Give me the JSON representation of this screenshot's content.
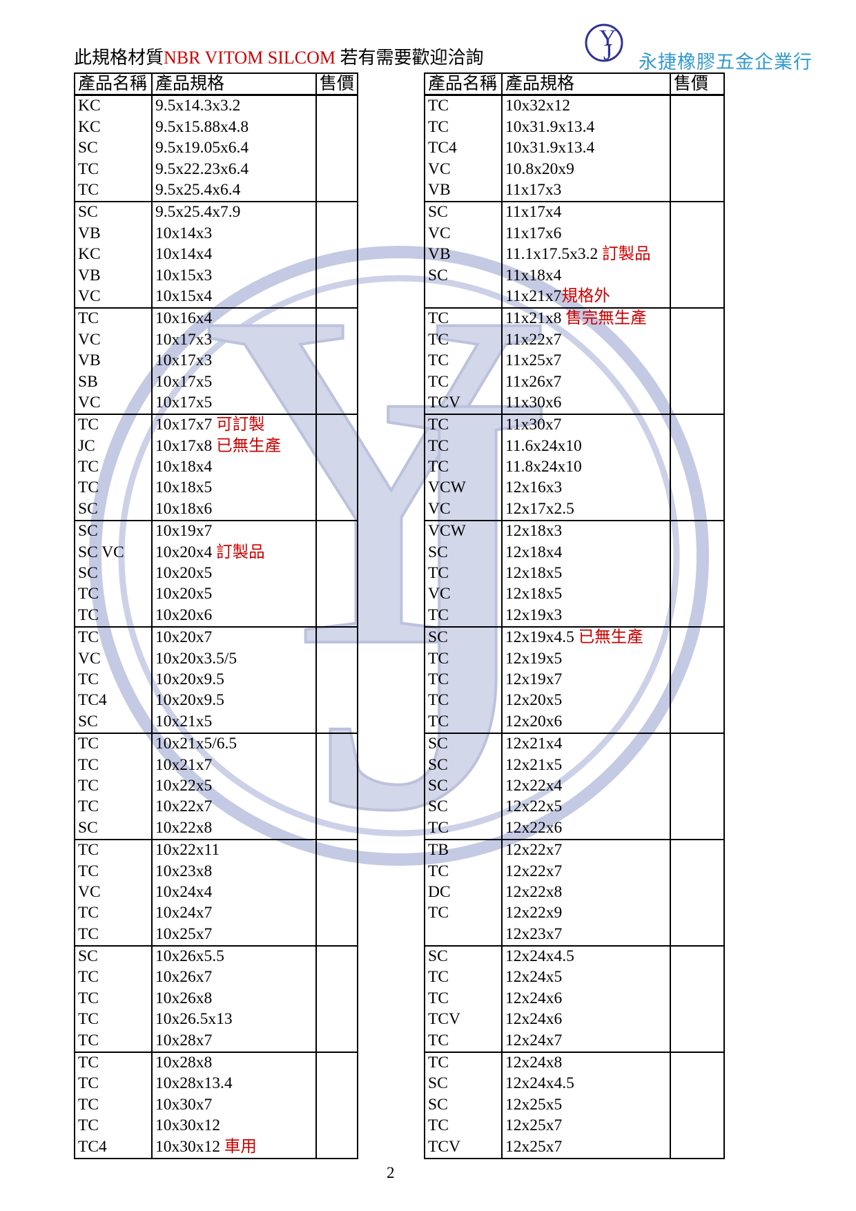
{
  "header": {
    "prefix": "此規格材質",
    "highlight": "NBR VITOM SILCOM",
    "suffix": " 若有需要歡迎洽詢"
  },
  "company": {
    "name": "永捷橡膠五金企業行",
    "color": "#3399cc"
  },
  "logo": {
    "letters": [
      "Y",
      "J"
    ],
    "color": "#2e3192"
  },
  "watermark": {
    "letters": [
      "Y",
      "J"
    ],
    "ring_color": "#c4cae3",
    "letter_fill": "#d3d7ea"
  },
  "colors": {
    "note_red": "#cc0000",
    "text": "#000000"
  },
  "columns": [
    "產品名稱",
    "產品規格",
    "售價"
  ],
  "tables": {
    "left": {
      "rows": [
        [
          "KC",
          "9.5x14.3x3.2",
          ""
        ],
        [
          "KC",
          "9.5x15.88x4.8",
          ""
        ],
        [
          "SC",
          "9.5x19.05x6.4",
          ""
        ],
        [
          "TC",
          "9.5x22.23x6.4",
          ""
        ],
        [
          "TC",
          "9.5x25.4x6.4",
          ""
        ],
        [
          "SC",
          "9.5x25.4x7.9",
          ""
        ],
        [
          "VB",
          "10x14x3",
          ""
        ],
        [
          "KC",
          "10x14x4",
          ""
        ],
        [
          "VB",
          "10x15x3",
          ""
        ],
        [
          "VC",
          "10x15x4",
          ""
        ],
        [
          "TC",
          "10x16x4",
          ""
        ],
        [
          "VC",
          "10x17x3",
          ""
        ],
        [
          "VB",
          "10x17x3",
          ""
        ],
        [
          "SB",
          "10x17x5",
          ""
        ],
        [
          "VC",
          "10x17x5",
          ""
        ],
        [
          "TC",
          "10x17x7",
          " 可訂製"
        ],
        [
          "JC",
          "10x17x8",
          " 已無生產"
        ],
        [
          "TC",
          "10x18x4",
          ""
        ],
        [
          "TC",
          "10x18x5",
          ""
        ],
        [
          "SC",
          "10x18x6",
          ""
        ],
        [
          "SC",
          "10x19x7",
          ""
        ],
        [
          "SC VC",
          "10x20x4",
          " 訂製品"
        ],
        [
          "SC",
          "10x20x5",
          ""
        ],
        [
          "TC",
          "10x20x5",
          ""
        ],
        [
          "TC",
          "10x20x6",
          ""
        ],
        [
          "TC",
          "10x20x7",
          ""
        ],
        [
          "VC",
          "10x20x3.5/5",
          ""
        ],
        [
          "TC",
          "10x20x9.5",
          ""
        ],
        [
          "TC4",
          "10x20x9.5",
          ""
        ],
        [
          "SC",
          "10x21x5",
          ""
        ],
        [
          "TC",
          "10x21x5/6.5",
          ""
        ],
        [
          "TC",
          "10x21x7",
          ""
        ],
        [
          "TC",
          "10x22x5",
          ""
        ],
        [
          "TC",
          "10x22x7",
          ""
        ],
        [
          "SC",
          "10x22x8",
          ""
        ],
        [
          "TC",
          "10x22x11",
          ""
        ],
        [
          "TC",
          "10x23x8",
          ""
        ],
        [
          "VC",
          "10x24x4",
          ""
        ],
        [
          "TC",
          "10x24x7",
          ""
        ],
        [
          "TC",
          "10x25x7",
          ""
        ],
        [
          "SC",
          "10x26x5.5",
          ""
        ],
        [
          "TC",
          "10x26x7",
          ""
        ],
        [
          "TC",
          "10x26x8",
          ""
        ],
        [
          "TC",
          "10x26.5x13",
          ""
        ],
        [
          "TC",
          "10x28x7",
          ""
        ],
        [
          "TC",
          "10x28x8",
          ""
        ],
        [
          "TC",
          "10x28x13.4",
          ""
        ],
        [
          "TC",
          "10x30x7",
          ""
        ],
        [
          "TC",
          "10x30x12",
          ""
        ],
        [
          "TC4",
          "10x30x12",
          " 車用"
        ]
      ]
    },
    "right": {
      "rows": [
        [
          "TC",
          "10x32x12",
          ""
        ],
        [
          "TC",
          "10x31.9x13.4",
          ""
        ],
        [
          "TC4",
          "10x31.9x13.4",
          ""
        ],
        [
          "VC",
          "10.8x20x9",
          ""
        ],
        [
          "VB",
          "11x17x3",
          ""
        ],
        [
          "SC",
          "11x17x4",
          ""
        ],
        [
          "VC",
          "11x17x6",
          ""
        ],
        [
          "VB",
          "11.1x17.5x3.2",
          " 訂製品"
        ],
        [
          "SC",
          "11x18x4",
          ""
        ],
        [
          "",
          "11x21x7",
          "規格外"
        ],
        [
          "TC",
          "11x21x8",
          " 售完無生產"
        ],
        [
          "TC",
          "11x22x7",
          ""
        ],
        [
          "TC",
          "11x25x7",
          ""
        ],
        [
          "TC",
          "11x26x7",
          ""
        ],
        [
          "TCV",
          "11x30x6",
          ""
        ],
        [
          "TC",
          "11x30x7",
          ""
        ],
        [
          "TC",
          "11.6x24x10",
          ""
        ],
        [
          "TC",
          "11.8x24x10",
          ""
        ],
        [
          "VCW",
          "12x16x3",
          ""
        ],
        [
          "VC",
          "12x17x2.5",
          ""
        ],
        [
          "VCW",
          "12x18x3",
          ""
        ],
        [
          "SC",
          "12x18x4",
          ""
        ],
        [
          "TC",
          "12x18x5",
          ""
        ],
        [
          "VC",
          "12x18x5",
          ""
        ],
        [
          "TC",
          "12x19x3",
          ""
        ],
        [
          "SC",
          "12x19x4.5",
          " 已無生產"
        ],
        [
          "TC",
          "12x19x5",
          ""
        ],
        [
          "TC",
          "12x19x7",
          ""
        ],
        [
          "TC",
          "12x20x5",
          ""
        ],
        [
          "TC",
          "12x20x6",
          ""
        ],
        [
          "SC",
          "12x21x4",
          ""
        ],
        [
          "SC",
          "12x21x5",
          ""
        ],
        [
          "SC",
          "12x22x4",
          ""
        ],
        [
          "SC",
          "12x22x5",
          ""
        ],
        [
          "TC",
          "12x22x6",
          ""
        ],
        [
          "TB",
          "12x22x7",
          ""
        ],
        [
          "TC",
          "12x22x7",
          ""
        ],
        [
          "DC",
          "12x22x8",
          ""
        ],
        [
          "TC",
          "12x22x9",
          ""
        ],
        [
          "",
          "12x23x7",
          ""
        ],
        [
          "SC",
          "12x24x4.5",
          ""
        ],
        [
          "TC",
          "12x24x5",
          ""
        ],
        [
          "TC",
          "12x24x6",
          ""
        ],
        [
          "TCV",
          "12x24x6",
          ""
        ],
        [
          "TC",
          "12x24x7",
          ""
        ],
        [
          "TC",
          "12x24x8",
          ""
        ],
        [
          "SC",
          "12x24x4.5",
          ""
        ],
        [
          "SC",
          "12x25x5",
          ""
        ],
        [
          "TC",
          "12x25x7",
          ""
        ],
        [
          "TCV",
          "12x25x7",
          ""
        ]
      ]
    }
  },
  "page_number": "2"
}
